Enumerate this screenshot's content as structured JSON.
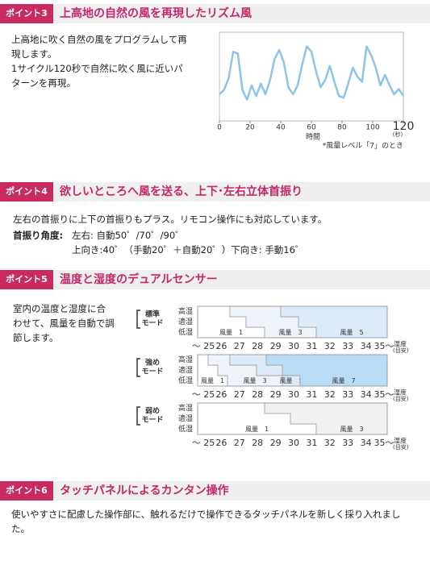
{
  "sections": [
    {
      "badge": "ポイント3",
      "title": "上高地の自然の風を再現したリズム風",
      "text": [
        "上高地に吹く自然の風をプログラムして再",
        "現します。",
        "1サイクル120秒で自然に吹く風に近いパ",
        "ターンを再現。"
      ]
    },
    {
      "badge": "ポイント4",
      "title": "欲しいところへ風を送る、上下･左右立体首振り",
      "text": [
        "左右の首振りに上下の首振りもプラス。リモコン操作にも対応しています。"
      ],
      "angle_label": "首振り角度:",
      "angle_lines": [
        "左右: 自動50゜/70゜/90゜",
        "上向き:40゜（手動20゜＋自動20゜）下向き: 手動16゜"
      ]
    },
    {
      "badge": "ポイント5",
      "title": "温度と湿度のデュアルセンサー",
      "text": [
        "室内の温度と湿度に合",
        "わせて、風量を自動で調",
        "節します。"
      ],
      "diagram": {
        "rows": [
          "高湿",
          "適湿",
          "低湿"
        ],
        "temps": [
          "〜 25",
          "26",
          "27",
          "28",
          "29",
          "30",
          "31",
          "32",
          "33",
          "34",
          "35〜"
        ],
        "axis_label": "湿度",
        "axis_note": "(目安)",
        "modes": [
          {
            "name": [
              "標準",
              "モード"
            ],
            "zones": [
              "風量　1",
              "風量　3",
              "風量　5"
            ]
          },
          {
            "name": [
              "強め",
              "モード"
            ],
            "zones": [
              "風量　1",
              "風量　3",
              "風量　5",
              "風量　7"
            ]
          },
          {
            "name": [
              "弱め",
              "モード"
            ],
            "zones": [
              "風量　1",
              "風量　3"
            ]
          }
        ]
      }
    },
    {
      "badge": "ポイント6",
      "title": "タッチパネルによるカンタン操作",
      "text": [
        "使いやすさに配慮した操作部に、触れるだけで操作できるタッチパネルを新しく採り入れまし",
        "た。"
      ]
    }
  ],
  "chart_data": {
    "type": "line",
    "x_label": "時間",
    "x_unit": "(秒)",
    "note": "*風量レベル「7」のとき",
    "x": [
      0,
      3,
      6,
      9,
      12,
      15,
      18,
      21,
      24,
      27,
      30,
      33,
      36,
      39,
      42,
      45,
      48,
      51,
      54,
      57,
      60,
      63,
      66,
      69,
      72,
      75,
      78,
      81,
      84,
      87,
      90,
      93,
      96,
      99,
      102,
      105,
      108,
      111,
      114,
      117,
      120
    ],
    "values": [
      30,
      35,
      48,
      78,
      76,
      35,
      24,
      40,
      28,
      42,
      30,
      46,
      70,
      80,
      66,
      38,
      30,
      40,
      64,
      84,
      78,
      56,
      38,
      46,
      62,
      44,
      28,
      26,
      42,
      60,
      50,
      44,
      84,
      74,
      60,
      40,
      52,
      40,
      30,
      36,
      28
    ],
    "color": "#8ec4e8",
    "xlim": [
      0,
      120
    ],
    "xticks": [
      0,
      20,
      40,
      60,
      80,
      100,
      120
    ],
    "ylim": [
      0,
      100
    ]
  }
}
